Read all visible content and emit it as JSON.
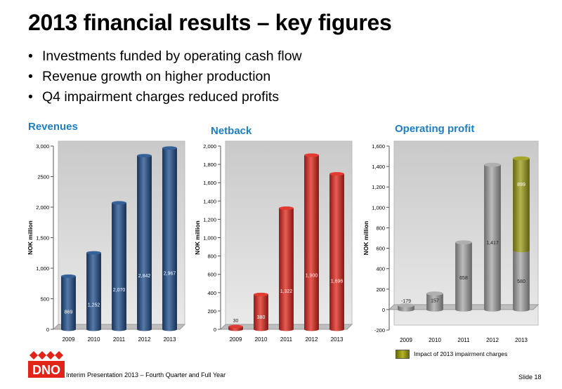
{
  "slide": {
    "title": "2013 financial results – key figures",
    "bullets": [
      "Investments funded by operating cash flow",
      "Revenue growth on higher production",
      "Q4 impairment charges reduced profits"
    ],
    "footer": "Interim Presentation 2013 – Fourth Quarter and Full Year",
    "slide_number": "Slide 18",
    "logo_text": "DNO",
    "logo_color": "#e2231a"
  },
  "chart_data": [
    {
      "type": "bar",
      "title": "Revenues",
      "ylabel": "NOK million",
      "categories": [
        "2009",
        "2010",
        "2011",
        "2012",
        "2013"
      ],
      "values": [
        869,
        1252,
        2070,
        2842,
        2967
      ],
      "data_labels": [
        "869",
        "1,252",
        "2,070",
        "2,842",
        "2,967"
      ],
      "ylim": [
        0,
        3000
      ],
      "yticks": [
        0,
        500,
        1000,
        1500,
        2000,
        2500,
        3000
      ],
      "ytick_labels": [
        "0",
        "500",
        "1,000",
        "1,500",
        "2,000",
        "2500",
        "3,000"
      ],
      "color": "#1f4e8c",
      "grid": false
    },
    {
      "type": "bar",
      "title": "Netback",
      "ylabel": "NOK million",
      "categories": [
        "2009",
        "2010",
        "2011",
        "2012",
        "2013"
      ],
      "values": [
        30,
        380,
        1322,
        1900,
        1696
      ],
      "data_labels": [
        "30",
        "380",
        "1,322",
        "1,900",
        "1,696"
      ],
      "ylim": [
        0,
        2000
      ],
      "yticks": [
        0,
        200,
        400,
        600,
        800,
        1000,
        1200,
        1400,
        1600,
        1800,
        2000
      ],
      "ytick_labels": [
        "0",
        "200",
        "400",
        "600",
        "800",
        "1,000",
        "1,200",
        "1,400",
        "1,600",
        "1,800",
        "2,000"
      ],
      "color": "#e0251b",
      "grid": false
    },
    {
      "type": "bar",
      "stacked": true,
      "title": "Operating profit",
      "ylabel": "NOK million",
      "categories": [
        "2009",
        "2010",
        "2011",
        "2012",
        "2013"
      ],
      "series": [
        {
          "values": [
            -179,
            157,
            658,
            1417,
            580
          ],
          "data_labels": [
            "-179",
            "157",
            "658",
            "1,417",
            "580"
          ],
          "color": "#a6a6a6"
        },
        {
          "name": "Impact of 2013 impairment charges",
          "values": [
            0,
            0,
            0,
            0,
            899
          ],
          "data_labels": [
            "",
            "",
            "",
            "",
            "899"
          ],
          "color": "#9c9c16"
        }
      ],
      "ylim": [
        -200,
        1600
      ],
      "yticks": [
        -200,
        0,
        200,
        400,
        600,
        800,
        1000,
        1200,
        1400,
        1600
      ],
      "ytick_labels": [
        "-200",
        "0",
        "200",
        "400",
        "600",
        "800",
        "1,000",
        "1,200",
        "1,400",
        "1,600"
      ],
      "legend_position": "bottom",
      "grid": false
    }
  ]
}
